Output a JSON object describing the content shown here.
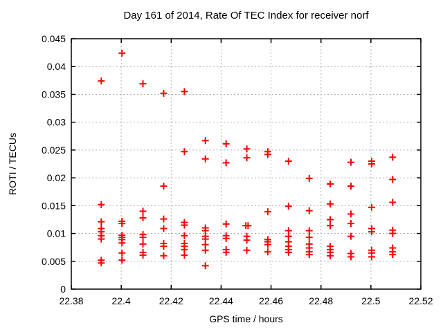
{
  "page": {
    "background": "#ffffff"
  },
  "chart_data": {
    "type": "scatter",
    "title": "Day 161 of 2014, Rate Of TEC Index for receiver norf",
    "xlabel": "GPS time / hours",
    "ylabel": "ROTI / TECUs",
    "xlim": [
      22.38,
      22.52
    ],
    "ylim": [
      0,
      0.045
    ],
    "xticks": [
      {
        "value": 22.38,
        "label": "22.38"
      },
      {
        "value": 22.4,
        "label": "22.4"
      },
      {
        "value": 22.42,
        "label": "22.42"
      },
      {
        "value": 22.44,
        "label": "22.44"
      },
      {
        "value": 22.46,
        "label": "22.46"
      },
      {
        "value": 22.48,
        "label": "22.48"
      },
      {
        "value": 22.5,
        "label": "22.5"
      },
      {
        "value": 22.52,
        "label": "22.52"
      }
    ],
    "yticks": [
      {
        "value": 0,
        "label": "0"
      },
      {
        "value": 0.005,
        "label": "0.005"
      },
      {
        "value": 0.01,
        "label": "0.01"
      },
      {
        "value": 0.015,
        "label": "0.015"
      },
      {
        "value": 0.02,
        "label": "0.02"
      },
      {
        "value": 0.025,
        "label": "0.025"
      },
      {
        "value": 0.03,
        "label": "0.03"
      },
      {
        "value": 0.035,
        "label": "0.035"
      },
      {
        "value": 0.04,
        "label": "0.04"
      },
      {
        "value": 0.045,
        "label": "0.045"
      }
    ],
    "grid": true,
    "legend": "none",
    "marker": {
      "shape": "plus",
      "color": "#ff0000",
      "size": 10,
      "stroke_width": 2
    },
    "frame_color": "#000000",
    "grid_color": "#b0b0b0",
    "text_color": "#000000",
    "series": [
      {
        "name": "ROTI",
        "points": [
          [
            22.392,
            0.0374
          ],
          [
            22.392,
            0.0152
          ],
          [
            22.392,
            0.0121
          ],
          [
            22.392,
            0.0109
          ],
          [
            22.392,
            0.0103
          ],
          [
            22.392,
            0.0096
          ],
          [
            22.392,
            0.009
          ],
          [
            22.392,
            0.0052
          ],
          [
            22.392,
            0.0047
          ],
          [
            22.4003,
            0.0424
          ],
          [
            22.4003,
            0.0122
          ],
          [
            22.4003,
            0.0118
          ],
          [
            22.4003,
            0.0097
          ],
          [
            22.4003,
            0.0093
          ],
          [
            22.4003,
            0.0089
          ],
          [
            22.4003,
            0.0083
          ],
          [
            22.4003,
            0.0065
          ],
          [
            22.4003,
            0.0052
          ],
          [
            22.4087,
            0.0369
          ],
          [
            22.4087,
            0.014
          ],
          [
            22.4087,
            0.0128
          ],
          [
            22.4087,
            0.0098
          ],
          [
            22.4087,
            0.0093
          ],
          [
            22.4087,
            0.0081
          ],
          [
            22.4087,
            0.0066
          ],
          [
            22.4087,
            0.0061
          ],
          [
            22.417,
            0.0352
          ],
          [
            22.417,
            0.0185
          ],
          [
            22.417,
            0.0126
          ],
          [
            22.417,
            0.0109
          ],
          [
            22.417,
            0.0082
          ],
          [
            22.417,
            0.0077
          ],
          [
            22.417,
            0.006
          ],
          [
            22.4253,
            0.0355
          ],
          [
            22.4253,
            0.0247
          ],
          [
            22.4253,
            0.012
          ],
          [
            22.4253,
            0.0115
          ],
          [
            22.4253,
            0.0096
          ],
          [
            22.4253,
            0.0082
          ],
          [
            22.4253,
            0.0077
          ],
          [
            22.4253,
            0.0071
          ],
          [
            22.4253,
            0.0061
          ],
          [
            22.4337,
            0.0267
          ],
          [
            22.4337,
            0.0234
          ],
          [
            22.4337,
            0.011
          ],
          [
            22.4337,
            0.0105
          ],
          [
            22.4337,
            0.0095
          ],
          [
            22.4337,
            0.009
          ],
          [
            22.4337,
            0.008
          ],
          [
            22.4337,
            0.007
          ],
          [
            22.4337,
            0.0042
          ],
          [
            22.442,
            0.0261
          ],
          [
            22.442,
            0.0227
          ],
          [
            22.442,
            0.0117
          ],
          [
            22.442,
            0.0096
          ],
          [
            22.442,
            0.0091
          ],
          [
            22.442,
            0.0071
          ],
          [
            22.442,
            0.0066
          ],
          [
            22.4503,
            0.0252
          ],
          [
            22.4503,
            0.0236
          ],
          [
            22.4499,
            0.0114
          ],
          [
            22.4508,
            0.0114
          ],
          [
            22.4503,
            0.0095
          ],
          [
            22.4503,
            0.0088
          ],
          [
            22.4503,
            0.007
          ],
          [
            22.4587,
            0.0247
          ],
          [
            22.4587,
            0.0242
          ],
          [
            22.4587,
            0.0139
          ],
          [
            22.4587,
            0.0089
          ],
          [
            22.4587,
            0.0085
          ],
          [
            22.4587,
            0.008
          ],
          [
            22.4587,
            0.0067
          ],
          [
            22.467,
            0.023
          ],
          [
            22.467,
            0.0149
          ],
          [
            22.467,
            0.0105
          ],
          [
            22.467,
            0.0095
          ],
          [
            22.467,
            0.0085
          ],
          [
            22.467,
            0.0077
          ],
          [
            22.467,
            0.0071
          ],
          [
            22.467,
            0.0066
          ],
          [
            22.4753,
            0.0199
          ],
          [
            22.4753,
            0.0141
          ],
          [
            22.4753,
            0.0105
          ],
          [
            22.4753,
            0.0093
          ],
          [
            22.4753,
            0.0081
          ],
          [
            22.4753,
            0.0074
          ],
          [
            22.4753,
            0.0067
          ],
          [
            22.4753,
            0.0062
          ],
          [
            22.4837,
            0.0189
          ],
          [
            22.4837,
            0.0153
          ],
          [
            22.4837,
            0.0125
          ],
          [
            22.4837,
            0.0114
          ],
          [
            22.4837,
            0.0077
          ],
          [
            22.4837,
            0.0071
          ],
          [
            22.4837,
            0.0066
          ],
          [
            22.4837,
            0.006
          ],
          [
            22.492,
            0.0228
          ],
          [
            22.492,
            0.0185
          ],
          [
            22.492,
            0.0135
          ],
          [
            22.492,
            0.0118
          ],
          [
            22.492,
            0.0095
          ],
          [
            22.492,
            0.0064
          ],
          [
            22.492,
            0.0058
          ],
          [
            22.5003,
            0.023
          ],
          [
            22.5003,
            0.0225
          ],
          [
            22.5003,
            0.0147
          ],
          [
            22.5003,
            0.0109
          ],
          [
            22.5003,
            0.0103
          ],
          [
            22.5003,
            0.007
          ],
          [
            22.5003,
            0.0065
          ],
          [
            22.5003,
            0.0058
          ],
          [
            22.5087,
            0.0237
          ],
          [
            22.5087,
            0.0197
          ],
          [
            22.5087,
            0.0156
          ],
          [
            22.5087,
            0.0106
          ],
          [
            22.5087,
            0.01
          ],
          [
            22.5087,
            0.0074
          ],
          [
            22.5087,
            0.0067
          ],
          [
            22.5087,
            0.0062
          ]
        ]
      }
    ]
  }
}
